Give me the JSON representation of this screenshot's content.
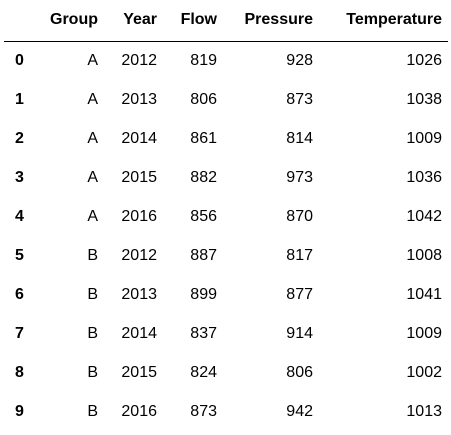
{
  "table": {
    "columns": [
      "",
      "Group",
      "Year",
      "Flow",
      "Pressure",
      "Temperature"
    ],
    "rows": [
      {
        "index": "0",
        "group": "A",
        "year": "2012",
        "flow": "819",
        "pressure": "928",
        "temperature": "1026"
      },
      {
        "index": "1",
        "group": "A",
        "year": "2013",
        "flow": "806",
        "pressure": "873",
        "temperature": "1038"
      },
      {
        "index": "2",
        "group": "A",
        "year": "2014",
        "flow": "861",
        "pressure": "814",
        "temperature": "1009"
      },
      {
        "index": "3",
        "group": "A",
        "year": "2015",
        "flow": "882",
        "pressure": "973",
        "temperature": "1036"
      },
      {
        "index": "4",
        "group": "A",
        "year": "2016",
        "flow": "856",
        "pressure": "870",
        "temperature": "1042"
      },
      {
        "index": "5",
        "group": "B",
        "year": "2012",
        "flow": "887",
        "pressure": "817",
        "temperature": "1008"
      },
      {
        "index": "6",
        "group": "B",
        "year": "2013",
        "flow": "899",
        "pressure": "877",
        "temperature": "1041"
      },
      {
        "index": "7",
        "group": "B",
        "year": "2014",
        "flow": "837",
        "pressure": "914",
        "temperature": "1009"
      },
      {
        "index": "8",
        "group": "B",
        "year": "2015",
        "flow": "824",
        "pressure": "806",
        "temperature": "1002"
      },
      {
        "index": "9",
        "group": "B",
        "year": "2016",
        "flow": "873",
        "pressure": "942",
        "temperature": "1013"
      }
    ]
  },
  "colors": {
    "background": "#ffffff",
    "text": "#000000",
    "header_rule": "#000000"
  }
}
